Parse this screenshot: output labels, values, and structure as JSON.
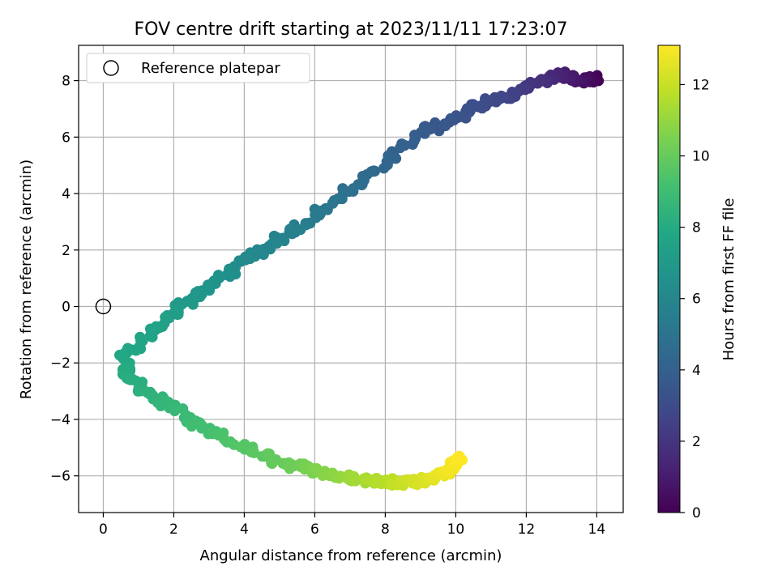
{
  "chart_data": {
    "type": "scatter",
    "title": "FOV centre drift starting at 2023/11/11 17:23:07",
    "xlabel": "Angular distance from reference (arcmin)",
    "ylabel": "Rotation from reference (arcmin)",
    "xlim": [
      -0.7,
      14.75
    ],
    "ylim": [
      -7.3,
      9.25
    ],
    "xticks": [
      0,
      2,
      4,
      6,
      8,
      10,
      12,
      14
    ],
    "yticks": [
      -6,
      -4,
      -2,
      0,
      2,
      4,
      6,
      8
    ],
    "xtick_labels": [
      "0",
      "2",
      "4",
      "6",
      "8",
      "10",
      "12",
      "14"
    ],
    "ytick_labels": [
      "−6",
      "−4",
      "−2",
      "0",
      "2",
      "4",
      "6",
      "8"
    ],
    "grid": true,
    "legend": {
      "placement": "top-left",
      "entries": [
        "Reference platepar"
      ]
    },
    "reference_point": {
      "x": 0,
      "y": 0,
      "label": "Reference platepar"
    },
    "colorbar": {
      "label": "Hours from first FF file",
      "colormap": "viridis",
      "range": [
        0,
        13.1
      ],
      "ticks": [
        0,
        2,
        4,
        6,
        8,
        10,
        12
      ],
      "tick_labels": [
        "0",
        "2",
        "4",
        "6",
        "8",
        "10",
        "12"
      ]
    },
    "trajectory_waypoints": [
      {
        "hours": 0.0,
        "x": 14.0,
        "y": 8.05
      },
      {
        "hours": 0.6,
        "x": 13.5,
        "y": 8.0
      },
      {
        "hours": 1.2,
        "x": 13.0,
        "y": 8.25
      },
      {
        "hours": 1.8,
        "x": 12.4,
        "y": 7.9
      },
      {
        "hours": 2.5,
        "x": 11.6,
        "y": 7.5
      },
      {
        "hours": 3.0,
        "x": 10.8,
        "y": 7.2
      },
      {
        "hours": 3.3,
        "x": 10.2,
        "y": 6.8
      },
      {
        "hours": 3.7,
        "x": 9.1,
        "y": 6.2
      },
      {
        "hours": 4.3,
        "x": 8.0,
        "y": 5.1
      },
      {
        "hours": 4.8,
        "x": 7.0,
        "y": 4.1
      },
      {
        "hours": 5.3,
        "x": 6.0,
        "y": 3.2
      },
      {
        "hours": 5.8,
        "x": 5.0,
        "y": 2.4
      },
      {
        "hours": 6.2,
        "x": 4.0,
        "y": 1.6
      },
      {
        "hours": 6.7,
        "x": 3.0,
        "y": 0.7
      },
      {
        "hours": 7.1,
        "x": 2.2,
        "y": 0.0
      },
      {
        "hours": 7.5,
        "x": 1.4,
        "y": -0.8
      },
      {
        "hours": 7.8,
        "x": 0.6,
        "y": -1.8
      },
      {
        "hours": 8.1,
        "x": 0.7,
        "y": -2.6
      },
      {
        "hours": 8.5,
        "x": 1.6,
        "y": -3.3
      },
      {
        "hours": 9.0,
        "x": 2.6,
        "y": -4.2
      },
      {
        "hours": 9.5,
        "x": 3.8,
        "y": -4.9
      },
      {
        "hours": 10.0,
        "x": 5.0,
        "y": -5.5
      },
      {
        "hours": 10.5,
        "x": 6.0,
        "y": -5.8
      },
      {
        "hours": 11.1,
        "x": 7.0,
        "y": -6.1
      },
      {
        "hours": 11.7,
        "x": 8.0,
        "y": -6.2
      },
      {
        "hours": 12.3,
        "x": 9.0,
        "y": -6.2
      },
      {
        "hours": 12.8,
        "x": 9.7,
        "y": -5.9
      },
      {
        "hours": 13.1,
        "x": 10.1,
        "y": -5.3
      }
    ],
    "points_per_segment": 16,
    "jitter": {
      "x": 0.16,
      "y": 0.14
    }
  }
}
